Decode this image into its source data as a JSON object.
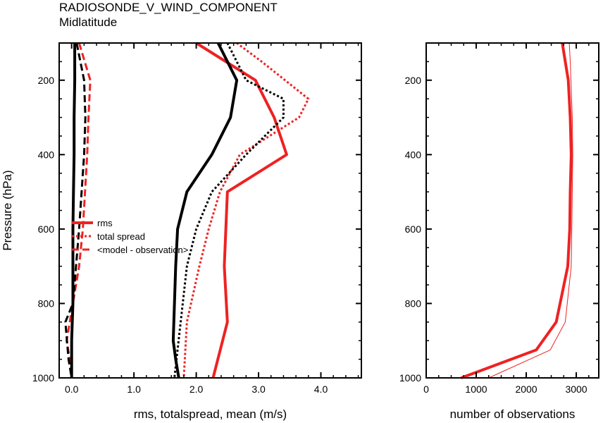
{
  "title": "RADIOSONDE_V_WIND_COMPONENT",
  "subtitle": "Midlatitude",
  "chart_data": [
    {
      "type": "line",
      "title": "RADIOSONDE_V_WIND_COMPONENT",
      "subtitle": "Midlatitude",
      "xlabel": "rms, totalspread, mean (m/s)",
      "ylabel": "Pressure (hPa)",
      "xlim": [
        -0.2,
        4.65
      ],
      "ylim": [
        1000,
        100
      ],
      "y_reversed": true,
      "xticks": [
        "0.0",
        "1.0",
        "2.0",
        "3.0",
        "4.0"
      ],
      "yticks": [
        "200",
        "400",
        "600",
        "800",
        "1000"
      ],
      "legend": [
        "rms",
        "total spread",
        "<model - observation>"
      ],
      "legend_position": "left-middle",
      "series": [
        {
          "name": "rms",
          "color": "#ee2222",
          "style": "solid",
          "width": 4,
          "x": [
            2.0,
            2.95,
            3.25,
            3.45,
            2.5,
            2.45,
            2.5,
            2.27
          ],
          "y": [
            100,
            200,
            300,
            400,
            500,
            700,
            850,
            1000
          ]
        },
        {
          "name": "total spread",
          "color": "#ee2222",
          "style": "dotted",
          "width": 3,
          "x": [
            2.65,
            3.05,
            3.8,
            3.65,
            2.7,
            2.38,
            2.2,
            2.05,
            1.85,
            1.8
          ],
          "y": [
            100,
            150,
            250,
            300,
            400,
            500,
            600,
            700,
            850,
            1000
          ]
        },
        {
          "name": "<model - observation>",
          "color": "#ee2222",
          "style": "dashed",
          "width": 3,
          "x": [
            0.12,
            0.3,
            0.27,
            0.25,
            0.18,
            0.12,
            0.02,
            -0.08,
            -0.03,
            0.0
          ],
          "y": [
            100,
            200,
            300,
            400,
            600,
            700,
            800,
            900,
            950,
            1000
          ]
        },
        {
          "name": "",
          "color": "#000000",
          "style": "solid",
          "width": 4,
          "x": [
            2.35,
            2.65,
            2.55,
            2.25,
            1.85,
            1.7,
            1.67,
            1.63,
            1.67,
            1.72
          ],
          "y": [
            100,
            200,
            300,
            400,
            500,
            600,
            700,
            900,
            950,
            1000
          ]
        },
        {
          "name": "",
          "color": "#000000",
          "style": "dotted",
          "width": 3,
          "x": [
            2.5,
            2.8,
            3.4,
            3.4,
            2.8,
            2.25,
            2.0,
            1.85,
            1.75,
            1.65
          ],
          "y": [
            100,
            200,
            250,
            300,
            400,
            500,
            600,
            700,
            850,
            1000
          ]
        },
        {
          "name": "",
          "color": "#000000",
          "style": "dashed",
          "width": 3,
          "x": [
            0.08,
            0.2,
            0.22,
            0.2,
            0.12,
            0.07,
            0.02,
            -0.1,
            -0.05,
            0.0
          ],
          "y": [
            100,
            200,
            300,
            400,
            600,
            700,
            800,
            850,
            950,
            1000
          ]
        },
        {
          "name": "",
          "color": "#000000",
          "style": "solid",
          "width": 4,
          "x": [
            0.05,
            0.05,
            0.04,
            0.04,
            0.03,
            0.02,
            0.02,
            0.0,
            0.0
          ],
          "y": [
            100,
            200,
            300,
            400,
            500,
            600,
            800,
            900,
            1000
          ]
        }
      ]
    },
    {
      "type": "line",
      "xlabel": "number of observations",
      "xlim": [
        0,
        3450
      ],
      "ylim": [
        1000,
        100
      ],
      "y_reversed": true,
      "xticks": [
        "0",
        "1000",
        "2000",
        "3000"
      ],
      "yticks": [
        "200",
        "400",
        "600",
        "800",
        "1000"
      ],
      "series": [
        {
          "name": "",
          "color": "#ee2222",
          "style": "solid",
          "width": 4,
          "x": [
            2720,
            2840,
            2880,
            2900,
            2880,
            2870,
            2830,
            2600,
            2200,
            700
          ],
          "y": [
            100,
            200,
            300,
            400,
            500,
            600,
            700,
            850,
            925,
            1000
          ]
        },
        {
          "name": "",
          "color": "#ee2222",
          "style": "solid",
          "width": 1,
          "x": [
            2860,
            2880,
            2920,
            2930,
            2920,
            2910,
            2900,
            2780,
            2480,
            1250
          ],
          "y": [
            100,
            150,
            300,
            400,
            500,
            600,
            700,
            850,
            925,
            1000
          ]
        }
      ]
    }
  ]
}
